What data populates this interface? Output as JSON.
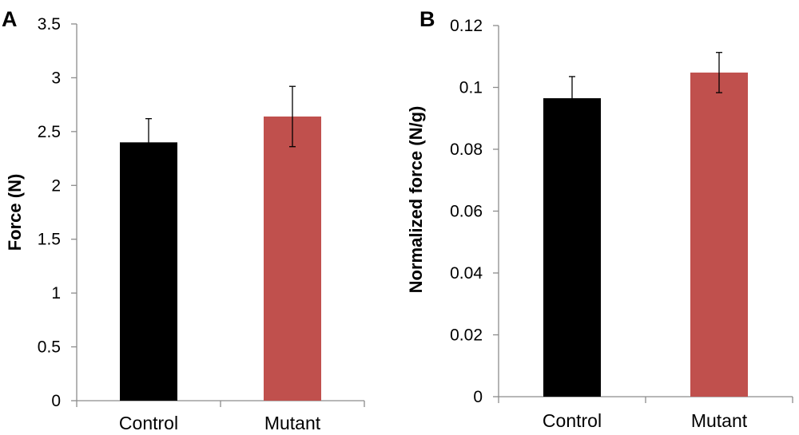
{
  "chart_data": [
    {
      "type": "bar",
      "panel_label": "A",
      "ylabel": "Force (N)",
      "xlabel": "",
      "categories": [
        "Control",
        "Mutant"
      ],
      "values": [
        2.4,
        2.64
      ],
      "errors": [
        0.22,
        0.28
      ],
      "colors": [
        "#000000",
        "#c0504d"
      ],
      "ylim": [
        0,
        3.5
      ],
      "yticks": [
        "0",
        "0.5",
        "1",
        "1.5",
        "2",
        "2.5",
        "3",
        "3.5"
      ],
      "grid": false,
      "legend": "none"
    },
    {
      "type": "bar",
      "panel_label": "B",
      "ylabel": "Normalized force (N/g)",
      "xlabel": "",
      "categories": [
        "Control",
        "Mutant"
      ],
      "values": [
        0.0965,
        0.1048
      ],
      "errors": [
        0.007,
        0.0065
      ],
      "colors": [
        "#000000",
        "#c0504d"
      ],
      "ylim": [
        0,
        0.12
      ],
      "yticks": [
        "0",
        "0.02",
        "0.04",
        "0.06",
        "0.08",
        "0.1",
        "0.12"
      ],
      "grid": false,
      "legend": "none"
    }
  ]
}
